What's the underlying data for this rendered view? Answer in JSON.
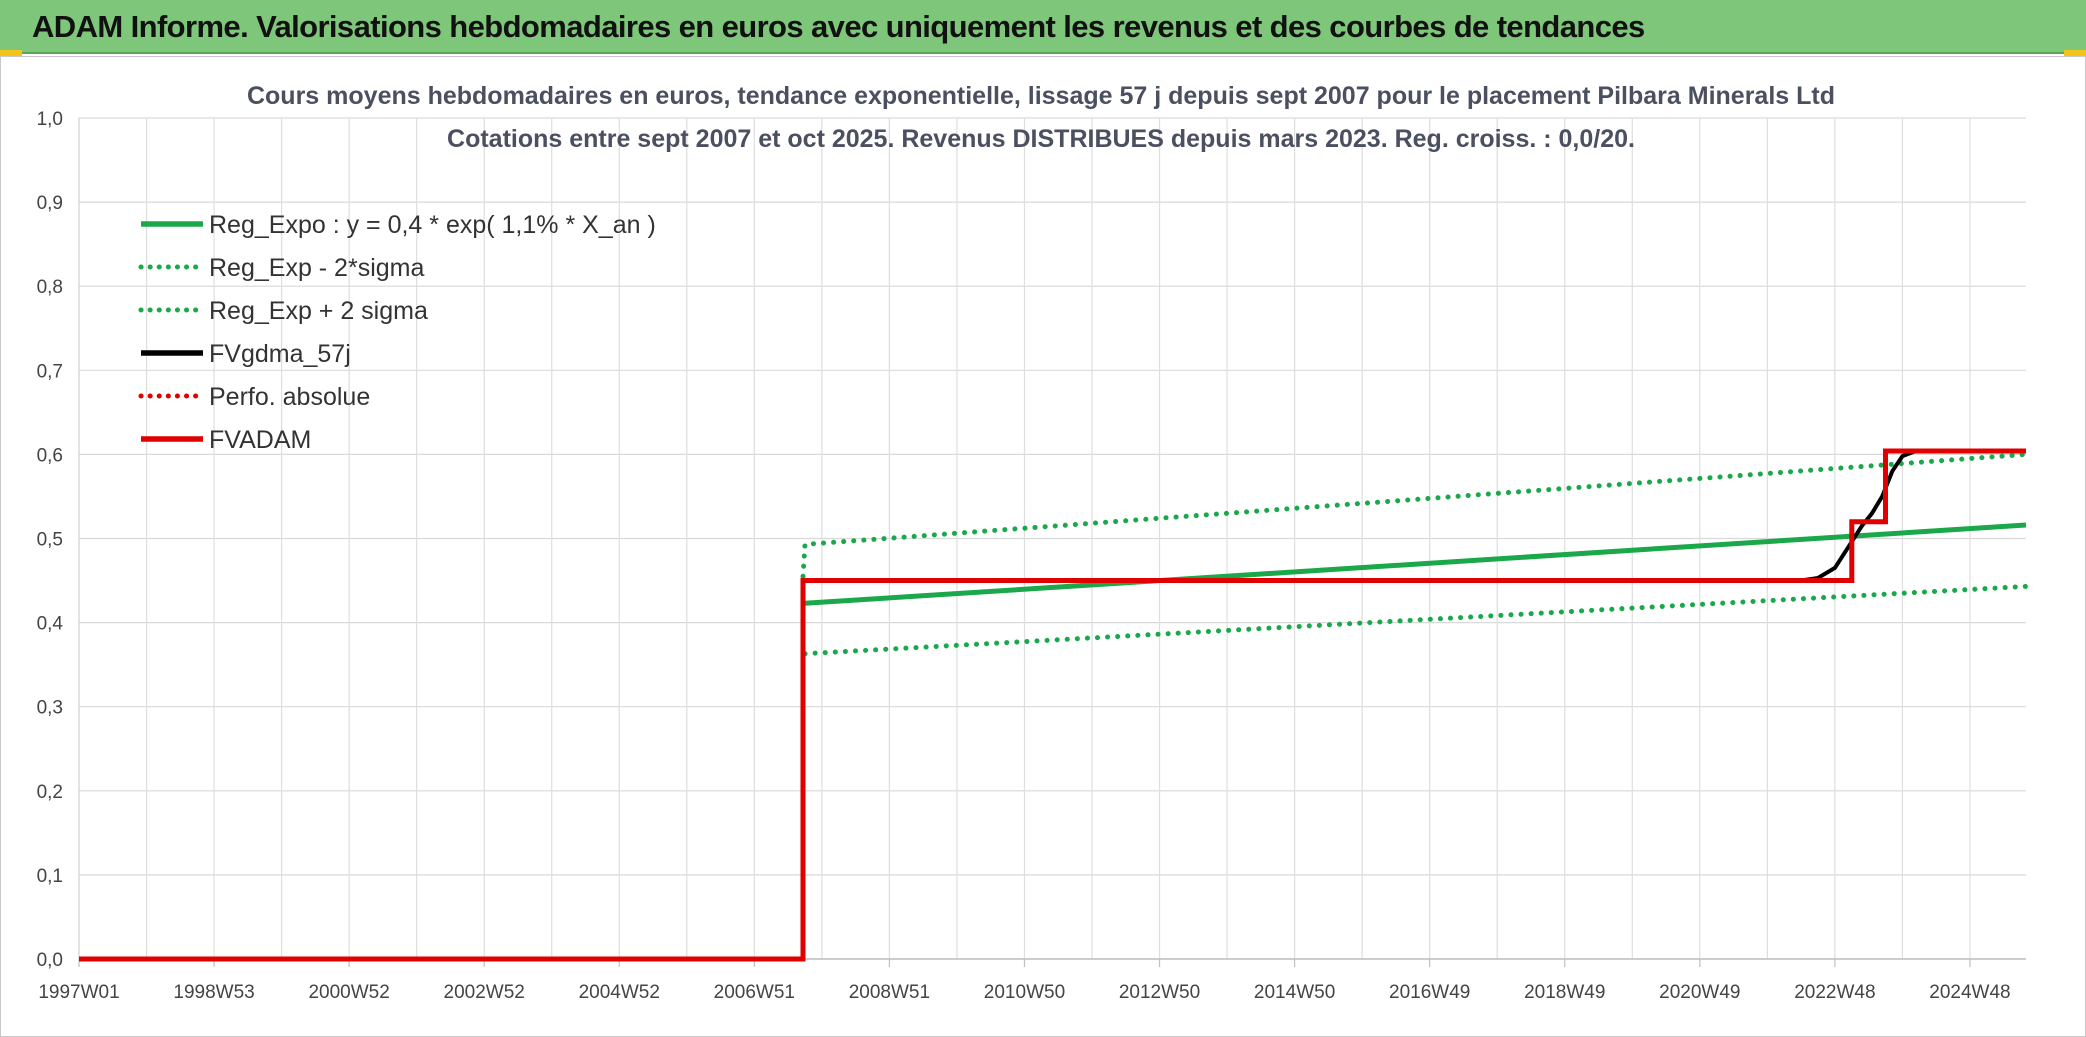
{
  "header": {
    "title": "ADAM Informe. Valorisations hebdomadaires en euros avec uniquement les revenus et des courbes de tendances"
  },
  "chart_data": {
    "type": "line",
    "title": "Cours moyens hebdomadaires en euros, tendance exponentielle, lissage 57 j depuis sept 2007 pour le placement Pilbara Minerals Ltd",
    "subtitle": "Cotations entre sept 2007 et oct 2025. Revenus DISTRIBUES depuis mars 2023. Reg. croiss. : 0,0/20.",
    "xlabel": "",
    "ylabel": "",
    "ylim": [
      0,
      1
    ],
    "yticks": [
      "0,0",
      "0,1",
      "0,2",
      "0,3",
      "0,4",
      "0,5",
      "0,6",
      "0,7",
      "0,8",
      "0,9",
      "1,0"
    ],
    "xlim": [
      1997.0,
      2025.83
    ],
    "xticks": [
      {
        "label": "1997W01",
        "x": 1997.0
      },
      {
        "label": "1998W53",
        "x": 1999.0
      },
      {
        "label": "2000W52",
        "x": 2001.0
      },
      {
        "label": "2002W52",
        "x": 2003.0
      },
      {
        "label": "2004W52",
        "x": 2005.0
      },
      {
        "label": "2006W51",
        "x": 2007.0
      },
      {
        "label": "2008W51",
        "x": 2009.0
      },
      {
        "label": "2010W50",
        "x": 2011.0
      },
      {
        "label": "2012W50",
        "x": 2013.0
      },
      {
        "label": "2014W50",
        "x": 2015.0
      },
      {
        "label": "2016W49",
        "x": 2017.0
      },
      {
        "label": "2018W49",
        "x": 2019.0
      },
      {
        "label": "2020W49",
        "x": 2021.0
      },
      {
        "label": "2022W48",
        "x": 2023.0
      },
      {
        "label": "2024W48",
        "x": 2025.0
      }
    ],
    "grid": true,
    "legend_position": "top-left",
    "series": [
      {
        "name": "Reg_Expo : y = 0,4 * exp( 1,1% *  X_an )",
        "color": "#1aa84a",
        "style": "solid",
        "x": [
          2007.75,
          2025.83
        ],
        "y": [
          0.423,
          0.516
        ]
      },
      {
        "name": "Reg_Exp - 2*sigma",
        "color": "#1aa84a",
        "style": "dotted",
        "x": [
          2007.75,
          2025.83
        ],
        "y": [
          0.363,
          0.443
        ]
      },
      {
        "name": "Reg_Exp + 2 sigma",
        "color": "#1aa84a",
        "style": "dotted",
        "x": [
          2007.72,
          2007.75,
          2025.83
        ],
        "y": [
          0.455,
          0.493,
          0.6
        ]
      },
      {
        "name": "FVgdma_57j",
        "color": "#000000",
        "style": "solid",
        "x": [
          2022.5,
          2022.75,
          2023.0,
          2023.2,
          2023.4,
          2023.55,
          2023.7,
          2023.85,
          2024.0,
          2024.2,
          2025.83
        ],
        "y": [
          0.45,
          0.453,
          0.465,
          0.49,
          0.515,
          0.53,
          0.55,
          0.58,
          0.598,
          0.604,
          0.604
        ]
      },
      {
        "name": "Perfo. absolue",
        "color": "#e00000",
        "style": "dotted",
        "x": [],
        "y": []
      },
      {
        "name": "FVADAM",
        "color": "#e00000",
        "style": "solid",
        "x": [
          1997.0,
          2007.72,
          2007.72,
          2023.25,
          2023.25,
          2023.75,
          2023.75,
          2025.83
        ],
        "y": [
          0.0,
          0.0,
          0.45,
          0.45,
          0.52,
          0.52,
          0.604,
          0.604
        ]
      }
    ]
  }
}
